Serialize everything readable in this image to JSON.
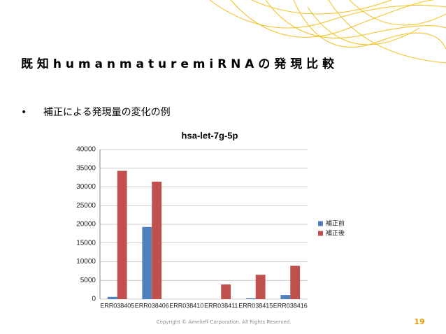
{
  "slide_title": "既 知 h u m a n   m a t u r e   m i R N A の 発 現 比 較",
  "bullet": "補正による発現量の変化の例",
  "copyright": "Copyright © Amelieff Corporation. All Rights Reserved.",
  "page_number": "19",
  "chart_data": {
    "type": "bar",
    "title": "hsa-let-7g-5p",
    "categories": [
      "ERR038405",
      "ERR038406",
      "ERR038410",
      "ERR038411",
      "ERR038415",
      "ERR038416"
    ],
    "series": [
      {
        "name": "補正前",
        "color": "#4f81bd",
        "values": [
          600,
          19300,
          0,
          0,
          200,
          1100
        ]
      },
      {
        "name": "補正後",
        "color": "#c0504d",
        "values": [
          34300,
          31400,
          0,
          3900,
          6500,
          8900
        ]
      }
    ],
    "ylim": [
      0,
      40000
    ],
    "yticks": [
      0,
      5000,
      10000,
      15000,
      20000,
      25000,
      30000,
      35000,
      40000
    ],
    "grid": true,
    "legend": "right"
  }
}
